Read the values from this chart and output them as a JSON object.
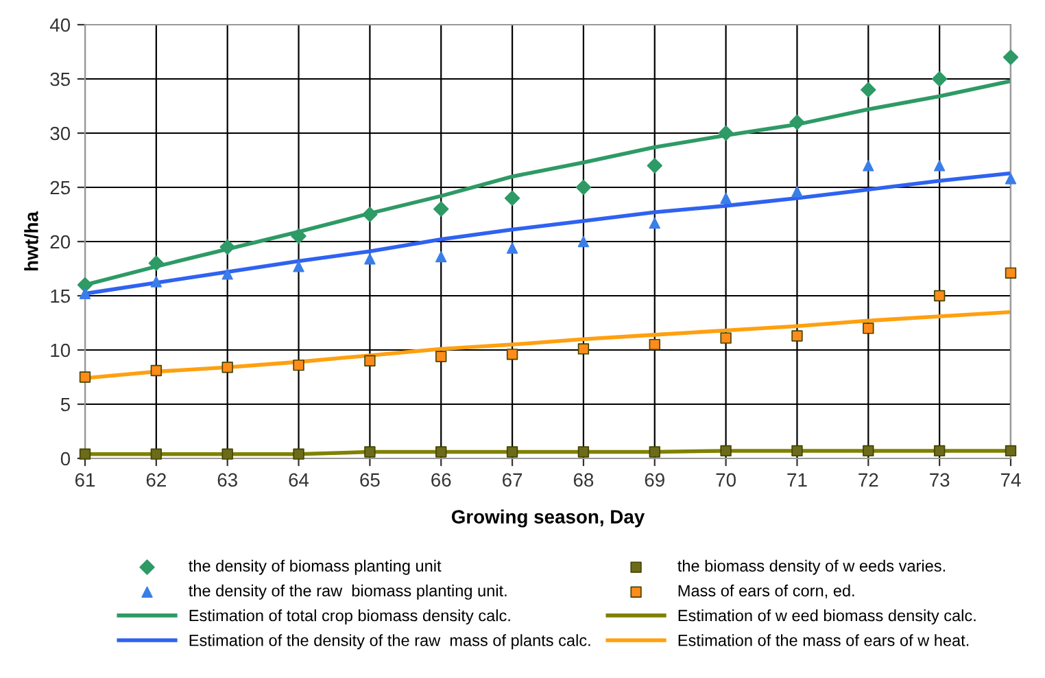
{
  "chart_data": {
    "type": "line",
    "xlabel": "Growing season, Day",
    "ylabel": "hwt/ha",
    "x": [
      61,
      62,
      63,
      64,
      65,
      66,
      67,
      68,
      69,
      70,
      71,
      72,
      73,
      74
    ],
    "series": [
      {
        "name": "the density of biomass planting unit",
        "type": "scatter",
        "marker": "diamond",
        "color": "#2e9a66",
        "values": [
          16,
          18,
          19.5,
          20.5,
          22.5,
          23,
          24,
          25,
          27,
          30,
          31,
          34,
          35,
          37
        ]
      },
      {
        "name": "the density of the raw  biomass planting unit.",
        "type": "scatter",
        "marker": "triangle",
        "color": "#3a7ee8",
        "values": [
          15.2,
          16.3,
          17,
          17.7,
          18.4,
          18.6,
          19.4,
          20,
          21.7,
          24,
          24.6,
          27,
          27,
          25.8
        ]
      },
      {
        "name": "Estimation of total crop biomass density calc.",
        "color": "#2e9a66",
        "values": [
          16,
          17.7,
          19.3,
          20.9,
          22.6,
          24.2,
          26,
          27.3,
          28.7,
          29.8,
          30.8,
          32.2,
          33.4,
          34.8
        ]
      },
      {
        "name": "Estimation of the density of the raw  mass of plants calc.",
        "color": "#2f62f0",
        "values": [
          15.2,
          16.2,
          17.2,
          18.2,
          19.1,
          20.2,
          21.1,
          21.9,
          22.7,
          23.3,
          24,
          24.8,
          25.6,
          26.3
        ]
      },
      {
        "name": "the biomass density of w eeds varies.",
        "type": "scatter",
        "marker": "square",
        "color": "#6b6b1a",
        "values": [
          0.4,
          0.4,
          0.4,
          0.4,
          0.6,
          0.6,
          0.6,
          0.6,
          0.6,
          0.7,
          0.7,
          0.7,
          0.7,
          0.7
        ]
      },
      {
        "name": "Mass of ears of corn, ed.",
        "type": "scatter",
        "marker": "square",
        "color": "#ff8c1a",
        "values": [
          7.5,
          8.1,
          8.4,
          8.6,
          9.0,
          9.4,
          9.6,
          10.1,
          10.5,
          11.1,
          11.3,
          12.0,
          15.0,
          17.1
        ]
      },
      {
        "name": "Estimation of w eed biomass density calc.",
        "color": "#808000",
        "values": [
          0.4,
          0.4,
          0.4,
          0.4,
          0.6,
          0.6,
          0.6,
          0.6,
          0.6,
          0.7,
          0.7,
          0.7,
          0.7,
          0.7
        ]
      },
      {
        "name": "Estimation of the mass of ears of w heat.",
        "color": "#ffa010",
        "values": [
          7.4,
          8.0,
          8.4,
          8.9,
          9.5,
          10.1,
          10.5,
          11.0,
          11.4,
          11.8,
          12.2,
          12.7,
          13.1,
          13.5
        ]
      }
    ],
    "xlim": [
      61,
      74
    ],
    "xticks": [
      61,
      62,
      63,
      64,
      65,
      66,
      67,
      68,
      69,
      70,
      71,
      72,
      73,
      74
    ],
    "ylim": [
      0,
      40
    ],
    "yticks": [
      0,
      5,
      10,
      15,
      20,
      25,
      30,
      35,
      40
    ],
    "grid": true,
    "legend": "bottom"
  }
}
